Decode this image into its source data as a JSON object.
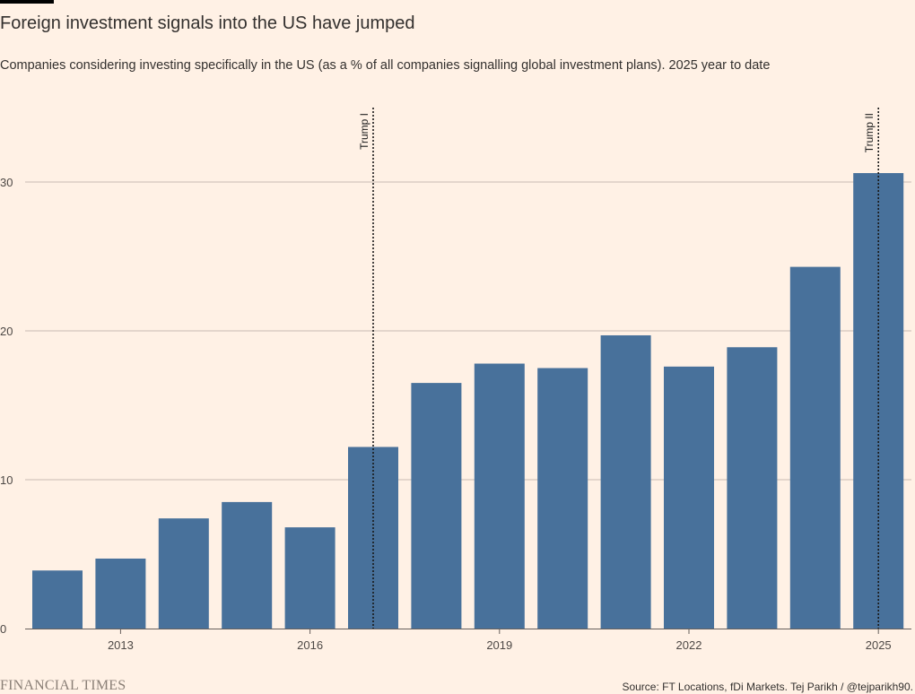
{
  "header": {
    "title": "Foreign investment signals into the US have jumped",
    "subtitle": "Companies considering investing specifically in the US (as a % of all companies signalling global investment plans). 2025 year to date"
  },
  "footer": {
    "brand": "FINANCIAL TIMES",
    "source": "Source: FT Locations, fDi Markets. Tej Parikh / @tejparikh90."
  },
  "chart_data": {
    "type": "bar",
    "title": "Foreign investment signals into the US have jumped",
    "xlabel": "",
    "ylabel": "",
    "categories": [
      "2012",
      "2013",
      "2014",
      "2015",
      "2016",
      "2017",
      "2018",
      "2019",
      "2020",
      "2021",
      "2022",
      "2023",
      "2024",
      "2025"
    ],
    "values": [
      3.9,
      4.7,
      7.4,
      8.5,
      6.8,
      12.2,
      16.5,
      17.8,
      17.5,
      19.7,
      17.6,
      18.9,
      24.3,
      30.6
    ],
    "x_tick_labels": [
      "2013",
      "2016",
      "2019",
      "2022",
      "2025"
    ],
    "y_ticks": [
      0,
      10,
      20,
      30
    ],
    "ylim": [
      0,
      35
    ],
    "grid": true,
    "bar_color": "#48719b",
    "annotations": [
      {
        "label": "Trump I",
        "x": "2017"
      },
      {
        "label": "Trump II",
        "x": "2025"
      }
    ]
  }
}
